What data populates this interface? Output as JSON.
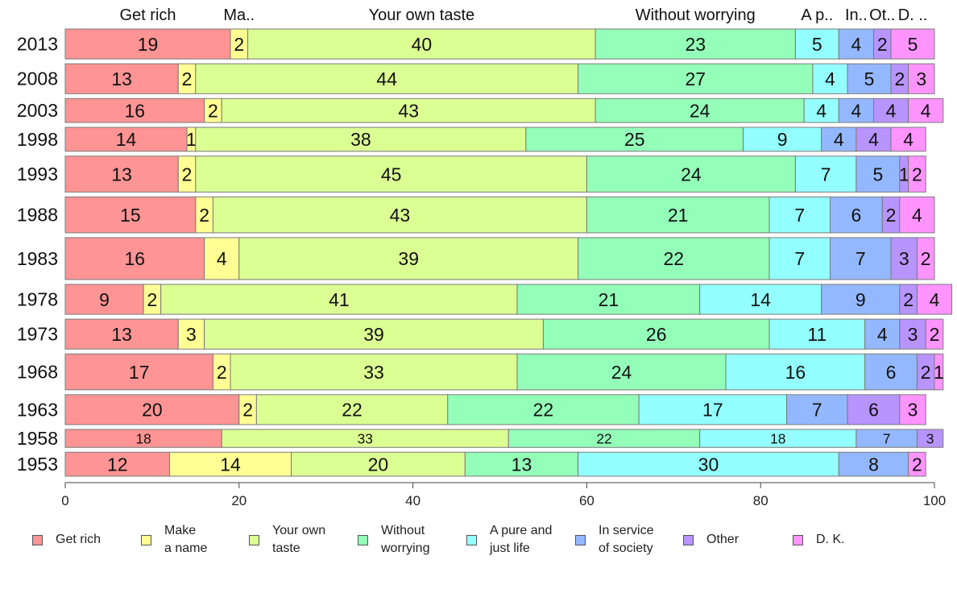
{
  "chart_data": {
    "type": "bar",
    "orientation": "horizontal",
    "stacked": true,
    "categories": [
      "2013",
      "2008",
      "2003",
      "1998",
      "1993",
      "1988",
      "1983",
      "1978",
      "1973",
      "1968",
      "1963",
      "1958",
      "1953"
    ],
    "series": [
      {
        "name": "Get rich",
        "short_label": "Get rich",
        "legend_label": "Get rich",
        "color": "#ff9494",
        "values": [
          19,
          13,
          16,
          14,
          13,
          15,
          16,
          9,
          13,
          17,
          20,
          18,
          12
        ]
      },
      {
        "name": "Make a name",
        "short_label": "Ma..",
        "legend_label": "Make\na name",
        "color": "#ffff94",
        "values": [
          2,
          2,
          2,
          1,
          2,
          2,
          4,
          2,
          3,
          2,
          2,
          0,
          14
        ]
      },
      {
        "name": "Your own taste",
        "short_label": "Your own taste",
        "legend_label": "Your own\ntaste",
        "color": "#dcff94",
        "values": [
          40,
          44,
          43,
          38,
          45,
          43,
          39,
          41,
          39,
          33,
          22,
          33,
          20
        ]
      },
      {
        "name": "Without worrying",
        "short_label": "Without worrying",
        "legend_label": "Without\nworrying",
        "color": "#94ffb8",
        "values": [
          23,
          27,
          24,
          25,
          24,
          21,
          22,
          21,
          26,
          24,
          22,
          22,
          13
        ]
      },
      {
        "name": "A pure and just life",
        "short_label": "A p..",
        "legend_label": "A pure and\njust life",
        "color": "#94ffff",
        "values": [
          5,
          4,
          4,
          9,
          7,
          7,
          7,
          14,
          11,
          16,
          17,
          18,
          30
        ]
      },
      {
        "name": "In service of society",
        "short_label": "In..",
        "legend_label": "In service\nof society",
        "color": "#94b8ff",
        "values": [
          4,
          5,
          4,
          4,
          5,
          6,
          7,
          9,
          4,
          6,
          7,
          7,
          8
        ]
      },
      {
        "name": "Other",
        "short_label": "Ot..",
        "legend_label": "Other",
        "color": "#b894ff",
        "values": [
          2,
          2,
          4,
          4,
          1,
          2,
          3,
          2,
          3,
          2,
          6,
          3,
          0
        ]
      },
      {
        "name": "D. K.",
        "short_label": "D. ..",
        "legend_label": "D. K.",
        "color": "#ff94ff",
        "values": [
          5,
          3,
          4,
          4,
          2,
          4,
          2,
          4,
          2,
          1,
          3,
          0,
          2
        ]
      }
    ],
    "row_weights": [
      5,
      5,
      4,
      4,
      6,
      6,
      7,
      5,
      5,
      6,
      5,
      3,
      4
    ],
    "xlim": [
      0,
      100
    ],
    "xticks": [
      0,
      20,
      40,
      60,
      80,
      100
    ],
    "xlabel": "",
    "ylabel": "",
    "title": "",
    "legend_position": "bottom",
    "grid": false
  }
}
